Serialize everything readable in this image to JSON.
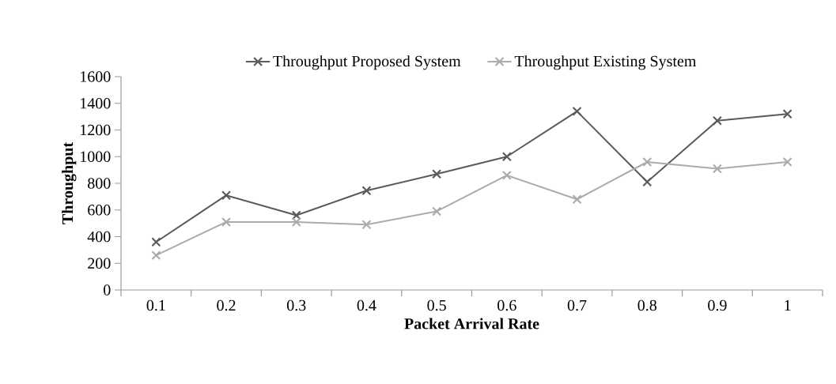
{
  "chart_data": {
    "type": "line",
    "xlabel": "Packet Arrival Rate",
    "ylabel": "Throughput",
    "categories": [
      "0.1",
      "0.2",
      "0.3",
      "0.4",
      "0.5",
      "0.6",
      "0.7",
      "0.8",
      "0.9",
      "1"
    ],
    "series": [
      {
        "name": "Throughput Proposed System",
        "color": "#595959",
        "marker": "cross",
        "values": [
          360,
          710,
          560,
          745,
          870,
          1000,
          1340,
          810,
          1270,
          1320
        ]
      },
      {
        "name": "Throughput Existing System",
        "color": "#ababab",
        "marker": "cross",
        "values": [
          260,
          510,
          510,
          490,
          590,
          860,
          680,
          960,
          910,
          960
        ]
      }
    ],
    "ylim": [
      0,
      1600
    ],
    "yticks": [
      0,
      200,
      400,
      600,
      800,
      1000,
      1200,
      1400,
      1600
    ],
    "legend": "top",
    "grid": false
  }
}
